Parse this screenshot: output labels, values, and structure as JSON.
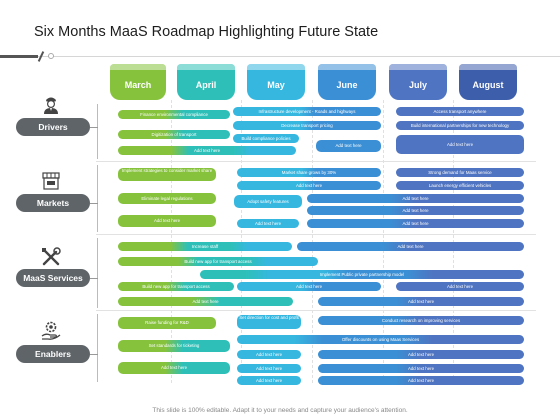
{
  "title": "Six Months MaaS Roadmap Highlighting Future State",
  "colors": {
    "march": "#86c23c",
    "april": "#2ec0b8",
    "may": "#36b7e0",
    "june": "#3b8fd4",
    "july": "#4f74c1",
    "august": "#3d5eab",
    "category_pill": "#5e6468"
  },
  "months": [
    "March",
    "April",
    "May",
    "June",
    "July",
    "August"
  ],
  "categories": [
    {
      "label": "Drivers",
      "icon": "driver-icon"
    },
    {
      "label": "Markets",
      "icon": "market-stall-icon"
    },
    {
      "label": "MaaS Services",
      "icon": "tools-icon"
    },
    {
      "label": "Enablers",
      "icon": "gear-hand-icon"
    }
  ],
  "drivers": {
    "r1": [
      "Finance environmental compliance",
      "Infrastructure development - Roads and highways",
      "Access transport anywhere"
    ],
    "r2": [
      "Digitization of transport",
      "Decrease transport pricing",
      "Build international partnerships for new technology"
    ],
    "r3": [
      "Build compliance policies",
      "Add text here"
    ],
    "r4": [
      "Add text here",
      "Add text here"
    ]
  },
  "markets": {
    "r1": [
      "Implement strategies to consider market share",
      "Market share grows by 30%",
      "Strong demand for Maas service"
    ],
    "r2": [
      "Add text here",
      "Launch energy efficient vehicles"
    ],
    "r3": [
      "Eliminate legal regulations",
      "Adopt safety features",
      "Add text here"
    ],
    "r4": [
      "Add text here"
    ],
    "r5": [
      "Add text here",
      "Add text here",
      "Add text here"
    ]
  },
  "maas_services": {
    "r1": [
      "Increase staff",
      "Add text here"
    ],
    "r2": [
      "Build new app for transport access"
    ],
    "r3": [
      "Implement Public private partnership model"
    ],
    "r4": [
      "Build new app for transport access",
      "Add text here",
      "Add text here"
    ],
    "r5": [
      "Add text here",
      "Add text here"
    ]
  },
  "enablers": {
    "r1": [
      "Raise funding for R&D",
      "Set direction for cost and profit",
      "Conduct research on improving services"
    ],
    "r2": [
      "Set standards for ticketing",
      "Offer discounts on using Maas Services"
    ],
    "r3": [
      "Add text here",
      "Add text here"
    ],
    "r4": [
      "Add text here",
      "Add text here",
      "Add text here"
    ],
    "r5": [
      "Add text here",
      "Add text here"
    ]
  },
  "footer": "This slide is 100% editable. Adapt it to your needs and capture your audience's attention."
}
